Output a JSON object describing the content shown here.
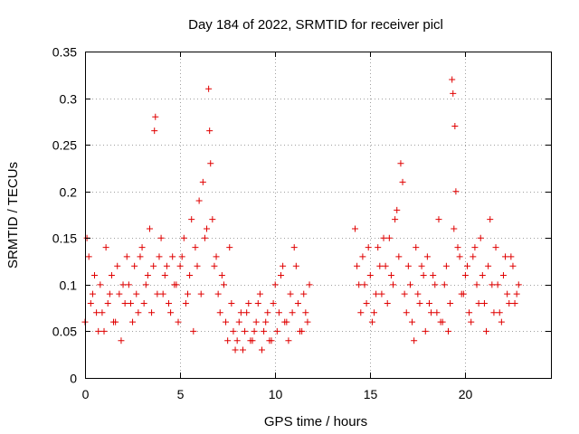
{
  "chart_data": {
    "type": "scatter",
    "title": "Day 184 of 2022, SRMTID for receiver picl",
    "xlabel": "GPS time / hours",
    "ylabel": "SRMTID / TECUs",
    "xlim": [
      0,
      24.5
    ],
    "ylim": [
      0,
      0.35
    ],
    "x_ticks": [
      0,
      5,
      10,
      15,
      20
    ],
    "x_tick_labels": [
      "0",
      "5",
      "10",
      "15",
      "20"
    ],
    "y_ticks": [
      0,
      0.05,
      0.1,
      0.15,
      0.2,
      0.25,
      0.3,
      0.35
    ],
    "y_tick_labels": [
      "0",
      "0.05",
      "0.1",
      "0.15",
      "0.2",
      "0.25",
      "0.3",
      "0.35"
    ],
    "grid": true,
    "marker": "plus",
    "color": "#e00000",
    "series": [
      {
        "x": [
          0.0,
          0.2,
          0.4,
          0.6,
          0.8,
          1.0,
          1.2,
          1.4,
          1.6,
          1.8,
          2.0,
          2.2,
          2.4,
          2.6,
          2.8,
          3.0,
          3.2,
          3.4,
          3.6,
          3.7,
          3.8,
          4.0,
          4.2,
          4.4,
          4.6,
          4.8,
          5.0,
          5.2,
          5.4,
          5.6,
          5.8,
          6.0,
          6.2,
          6.4,
          6.5,
          6.6,
          6.8,
          7.0,
          7.2,
          7.4,
          7.6,
          7.8,
          8.0,
          8.2,
          8.4,
          8.6,
          8.8,
          9.0,
          9.2,
          9.4,
          9.6,
          9.8,
          10.0,
          10.2,
          10.4,
          10.6,
          10.8,
          11.0,
          11.2,
          11.4,
          11.6,
          11.8,
          0.1,
          0.3,
          0.5,
          0.7,
          0.9,
          1.1,
          1.3,
          1.5,
          1.7,
          1.9,
          2.1,
          2.3,
          2.5,
          2.7,
          2.9,
          3.1,
          3.3,
          3.5,
          3.65,
          3.9,
          4.1,
          4.3,
          4.5,
          4.7,
          4.9,
          5.1,
          5.3,
          5.5,
          5.7,
          5.9,
          6.1,
          6.3,
          6.55,
          6.7,
          6.9,
          7.1,
          7.3,
          7.5,
          7.7,
          7.9,
          8.1,
          8.3,
          8.5,
          8.7,
          8.9,
          9.1,
          9.3,
          9.5,
          9.7,
          9.9,
          10.1,
          10.3,
          10.5,
          10.7,
          10.9,
          11.1,
          11.3,
          11.5,
          11.7,
          14.2,
          14.4,
          14.6,
          14.8,
          15.0,
          15.2,
          15.4,
          15.6,
          15.8,
          16.0,
          16.2,
          16.4,
          16.6,
          16.8,
          17.0,
          17.2,
          17.4,
          17.6,
          17.8,
          18.0,
          18.2,
          18.4,
          18.6,
          18.8,
          19.0,
          19.2,
          19.4,
          19.6,
          19.8,
          20.0,
          20.2,
          20.4,
          20.6,
          20.8,
          21.0,
          21.2,
          21.4,
          21.6,
          21.8,
          22.0,
          22.2,
          22.4,
          22.6,
          22.8,
          14.3,
          14.5,
          14.7,
          14.9,
          15.1,
          15.3,
          15.5,
          15.7,
          15.9,
          16.1,
          16.3,
          16.5,
          16.7,
          16.9,
          17.1,
          17.3,
          17.5,
          17.7,
          17.9,
          18.1,
          18.3,
          18.5,
          18.7,
          18.9,
          19.1,
          19.3,
          19.35,
          19.45,
          19.5,
          19.7,
          19.9,
          20.1,
          20.3,
          20.5,
          20.7,
          20.9,
          21.1,
          21.3,
          21.5,
          21.7,
          21.9,
          22.1,
          22.3,
          22.5,
          22.7
        ],
        "y": [
          0.06,
          0.13,
          0.09,
          0.07,
          0.1,
          0.05,
          0.08,
          0.11,
          0.06,
          0.09,
          0.1,
          0.13,
          0.08,
          0.12,
          0.07,
          0.14,
          0.1,
          0.16,
          0.12,
          0.28,
          0.09,
          0.15,
          0.11,
          0.08,
          0.13,
          0.1,
          0.12,
          0.15,
          0.09,
          0.17,
          0.14,
          0.19,
          0.21,
          0.16,
          0.31,
          0.23,
          0.12,
          0.09,
          0.11,
          0.06,
          0.14,
          0.05,
          0.04,
          0.07,
          0.05,
          0.08,
          0.04,
          0.06,
          0.09,
          0.05,
          0.07,
          0.04,
          0.1,
          0.07,
          0.12,
          0.06,
          0.09,
          0.14,
          0.08,
          0.05,
          0.07,
          0.1,
          0.15,
          0.08,
          0.11,
          0.05,
          0.07,
          0.14,
          0.09,
          0.06,
          0.12,
          0.04,
          0.08,
          0.1,
          0.06,
          0.09,
          0.13,
          0.08,
          0.11,
          0.07,
          0.265,
          0.13,
          0.09,
          0.12,
          0.07,
          0.1,
          0.06,
          0.13,
          0.08,
          0.11,
          0.05,
          0.12,
          0.09,
          0.15,
          0.265,
          0.17,
          0.13,
          0.07,
          0.1,
          0.04,
          0.08,
          0.03,
          0.06,
          0.03,
          0.07,
          0.04,
          0.05,
          0.08,
          0.03,
          0.06,
          0.04,
          0.08,
          0.05,
          0.11,
          0.06,
          0.04,
          0.07,
          0.12,
          0.05,
          0.09,
          0.06,
          0.16,
          0.1,
          0.13,
          0.08,
          0.11,
          0.07,
          0.14,
          0.09,
          0.12,
          0.15,
          0.1,
          0.18,
          0.23,
          0.09,
          0.12,
          0.06,
          0.14,
          0.08,
          0.11,
          0.13,
          0.07,
          0.1,
          0.17,
          0.06,
          0.12,
          0.08,
          0.16,
          0.14,
          0.09,
          0.11,
          0.07,
          0.13,
          0.1,
          0.15,
          0.08,
          0.12,
          0.1,
          0.14,
          0.07,
          0.11,
          0.09,
          0.13,
          0.08,
          0.1,
          0.12,
          0.07,
          0.1,
          0.14,
          0.06,
          0.09,
          0.12,
          0.15,
          0.08,
          0.11,
          0.17,
          0.13,
          0.21,
          0.07,
          0.1,
          0.04,
          0.09,
          0.12,
          0.05,
          0.08,
          0.11,
          0.07,
          0.06,
          0.1,
          0.05,
          0.32,
          0.305,
          0.27,
          0.2,
          0.13,
          0.09,
          0.12,
          0.06,
          0.14,
          0.08,
          0.11,
          0.05,
          0.17,
          0.07,
          0.1,
          0.06,
          0.13,
          0.08,
          0.12,
          0.09
        ]
      }
    ]
  }
}
